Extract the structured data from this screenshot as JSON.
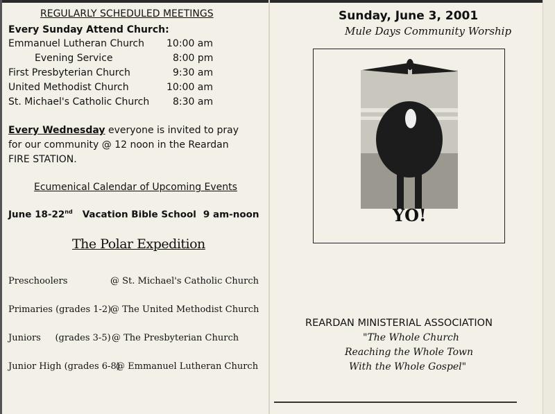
{
  "left_panel": {
    "meetings_title": "REGULARLY SCHEDULED MEETINGS",
    "sunday_heading": "Every Sunday Attend Church:",
    "services": [
      {
        "name": "Emmanuel Lutheran Church",
        "time": "10:00 am"
      },
      {
        "name": "Evening Service",
        "time": "8:00 pm"
      },
      {
        "name": "First Presbyterian Church",
        "time": "9:30 am"
      },
      {
        "name": "United Methodist Church",
        "time": "10:00 am"
      },
      {
        "name": "St. Michael's Catholic Church",
        "time": "8:30 am"
      }
    ],
    "wednesday_label": "Every Wednesday",
    "wednesday_text": " everyone is invited to pray for our community @ 12 noon in the Reardan FIRE STATION.",
    "calendar_title": "Ecumenical Calendar of Upcoming Events",
    "event": {
      "date": "June 18-22",
      "date_sup": "nd",
      "name": "Vacation Bible School",
      "time": "9 am-noon"
    },
    "vbs_title": "The Polar Expedition",
    "groups": [
      {
        "group": "Preschoolers",
        "location": "@ St. Michael's Catholic Church"
      },
      {
        "group": "Primaries (grades 1-2)",
        "location": "@ The United Methodist Church"
      },
      {
        "group": "Juniors     (grades 3-5)",
        "location": "@ The Presbyterian Church"
      },
      {
        "group": "Junior High (grades 6-8)",
        "location": "@ Emmanuel Lutheran Church"
      }
    ]
  },
  "right_panel": {
    "date": "Sunday, June 3, 2001",
    "subtitle": "Mule Days Community Worship",
    "photo_caption": "YO!",
    "association": "REARDAN MINISTERIAL ASSOCIATION",
    "motto": [
      "\"The Whole Church",
      "Reaching the Whole Town",
      "With the Whole Gospel\""
    ]
  }
}
